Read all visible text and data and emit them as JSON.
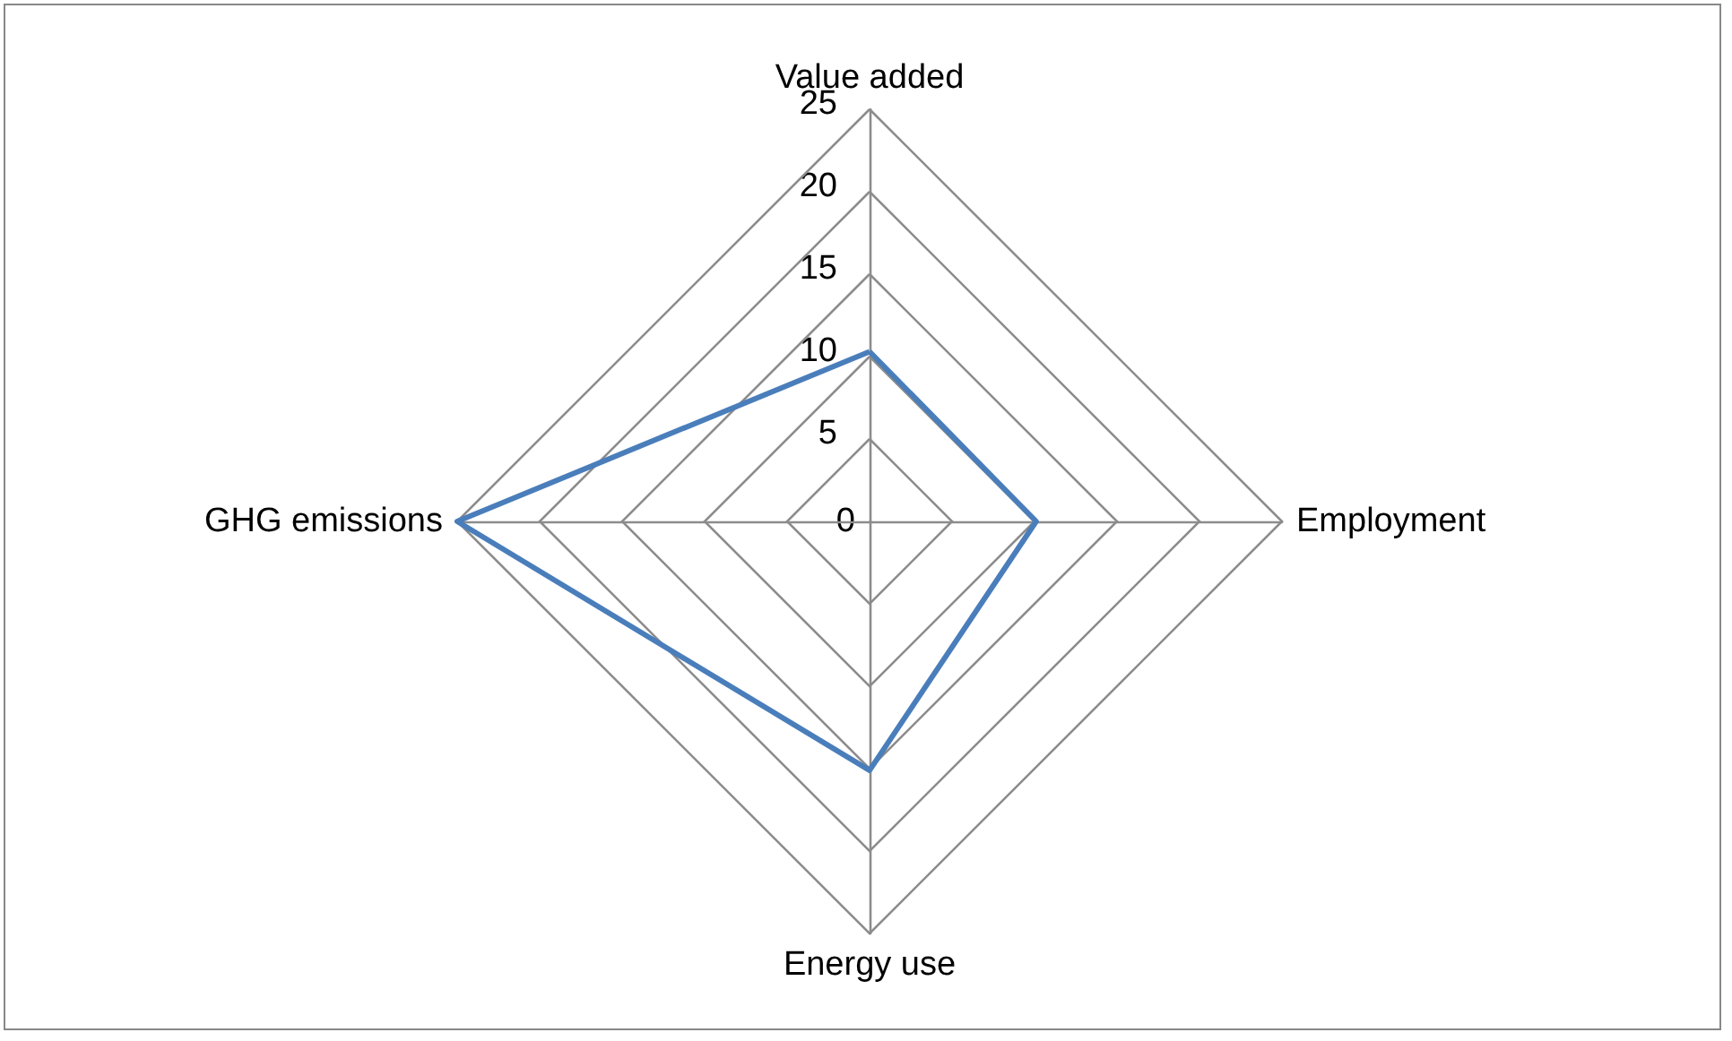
{
  "chart_data": {
    "type": "radar",
    "categories": [
      "Value added",
      "Employment",
      "Energy use",
      "GHG emissions"
    ],
    "series": [
      {
        "color": "#4a7ebb",
        "values": [
          10.3,
          10.1,
          15.1,
          25
        ]
      }
    ],
    "ylim": [
      0,
      25
    ],
    "yticks": [
      0,
      5,
      10,
      15,
      20,
      25
    ],
    "grid": true,
    "marker": "none"
  }
}
